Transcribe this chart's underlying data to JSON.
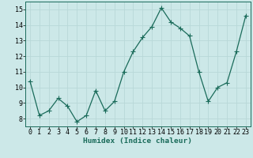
{
  "xlabel": "Humidex (Indice chaleur)",
  "x": [
    0,
    1,
    2,
    3,
    4,
    5,
    6,
    7,
    8,
    9,
    10,
    11,
    12,
    13,
    14,
    15,
    16,
    17,
    18,
    19,
    20,
    21,
    22,
    23
  ],
  "y": [
    10.4,
    8.2,
    8.5,
    9.3,
    8.8,
    7.8,
    8.2,
    9.8,
    8.5,
    9.1,
    11.0,
    12.3,
    13.2,
    13.9,
    15.1,
    14.2,
    13.8,
    13.3,
    11.0,
    9.1,
    10.0,
    10.3,
    12.3,
    14.6
  ],
  "line_color": "#1a6b5a",
  "bg_color": "#cce8e8",
  "grid_color": "#b8d8d8",
  "ylim": [
    7.5,
    15.5
  ],
  "xlim": [
    -0.5,
    23.5
  ],
  "yticks": [
    8,
    9,
    10,
    11,
    12,
    13,
    14,
    15
  ],
  "xticks": [
    0,
    1,
    2,
    3,
    4,
    5,
    6,
    7,
    8,
    9,
    10,
    11,
    12,
    13,
    14,
    15,
    16,
    17,
    18,
    19,
    20,
    21,
    22,
    23
  ],
  "xlabel_fontsize": 6.8,
  "tick_fontsize": 6.0,
  "marker_size": 2.2,
  "line_width": 0.9
}
